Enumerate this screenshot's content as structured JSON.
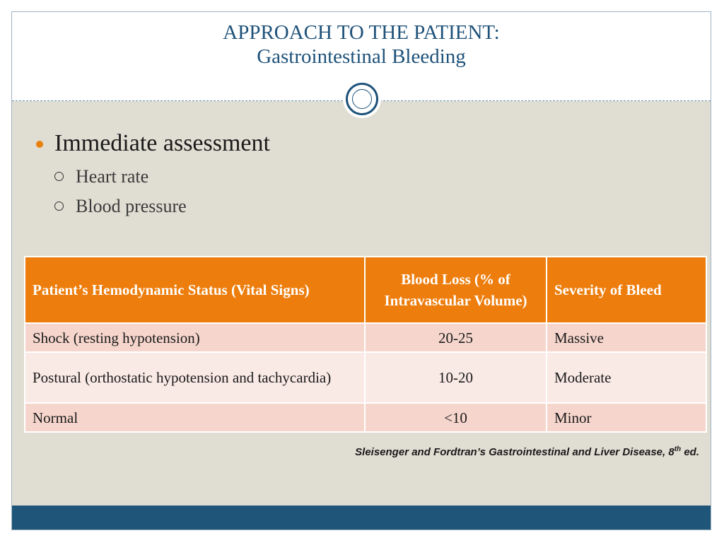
{
  "slide": {
    "title_line1": "APPROACH TO THE PATIENT:",
    "title_line2": "Gastrointestinal Bleeding"
  },
  "bullets": {
    "main": "Immediate assessment",
    "sub": [
      "Heart rate",
      "Blood pressure"
    ]
  },
  "table": {
    "headers": [
      "Patient’s Hemodynamic Status (Vital Signs)",
      "Blood Loss (% of Intravascular Volume)",
      "Severity of Bleed"
    ],
    "rows": [
      [
        "Shock (resting hypotension)",
        "20-25",
        "Massive"
      ],
      [
        "Postural (orthostatic hypotension and tachycardia)",
        "10-20",
        "Moderate"
      ],
      [
        "Normal",
        "<10",
        "Minor"
      ]
    ]
  },
  "citation": {
    "text": "Sleisenger and Fordtran’s Gastrointestinal and Liver Disease, 8",
    "superscript": "th",
    "suffix": " ed."
  },
  "colors": {
    "title": "#1e527a",
    "accent_orange": "#ed7d0c",
    "row_odd": "#f6d6cc",
    "row_even": "#faeae5",
    "background": "#e0ddd3",
    "footer": "#1e5579"
  },
  "icons": {
    "header_emblem": "double-circle-icon",
    "bullet_main": "filled-circle-bullet-icon",
    "bullet_sub": "hollow-circle-bullet-icon"
  }
}
